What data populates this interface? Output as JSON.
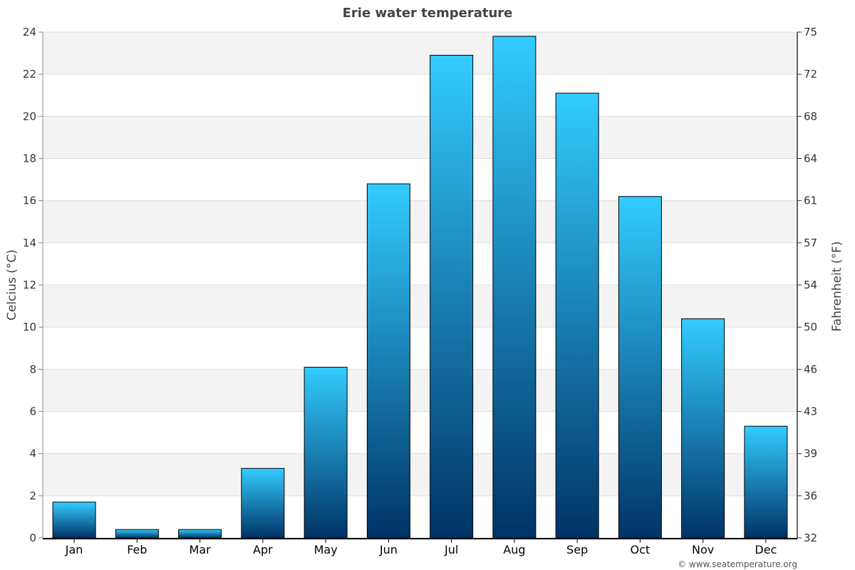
{
  "chart_data": {
    "type": "bar",
    "title": "Erie water temperature",
    "categories": [
      "Jan",
      "Feb",
      "Mar",
      "Apr",
      "May",
      "Jun",
      "Jul",
      "Aug",
      "Sep",
      "Oct",
      "Nov",
      "Dec"
    ],
    "series": [
      {
        "values": [
          1.7,
          0.4,
          0.4,
          3.3,
          8.1,
          16.8,
          22.9,
          23.8,
          21.1,
          16.2,
          10.4,
          5.3
        ]
      }
    ],
    "ylabel": "Celcius (°C)",
    "y2label": "Fahrenheit (°F)",
    "ylim": [
      0,
      24
    ],
    "yticks": [
      0,
      2,
      4,
      6,
      8,
      10,
      12,
      14,
      16,
      18,
      20,
      22,
      24
    ],
    "y2ticks": [
      32,
      36,
      39,
      43,
      46,
      50,
      54,
      57,
      61,
      64,
      68,
      72,
      75
    ],
    "grid": true,
    "banded_background": true,
    "legend": "none",
    "colors": {
      "bar_top": "#33ccff",
      "bar_bottom": "#003366",
      "bar_outline": "#000000",
      "band": "#f3f3f3",
      "gridline": "#dddddd"
    }
  },
  "credit": "© www.seatemperature.org"
}
